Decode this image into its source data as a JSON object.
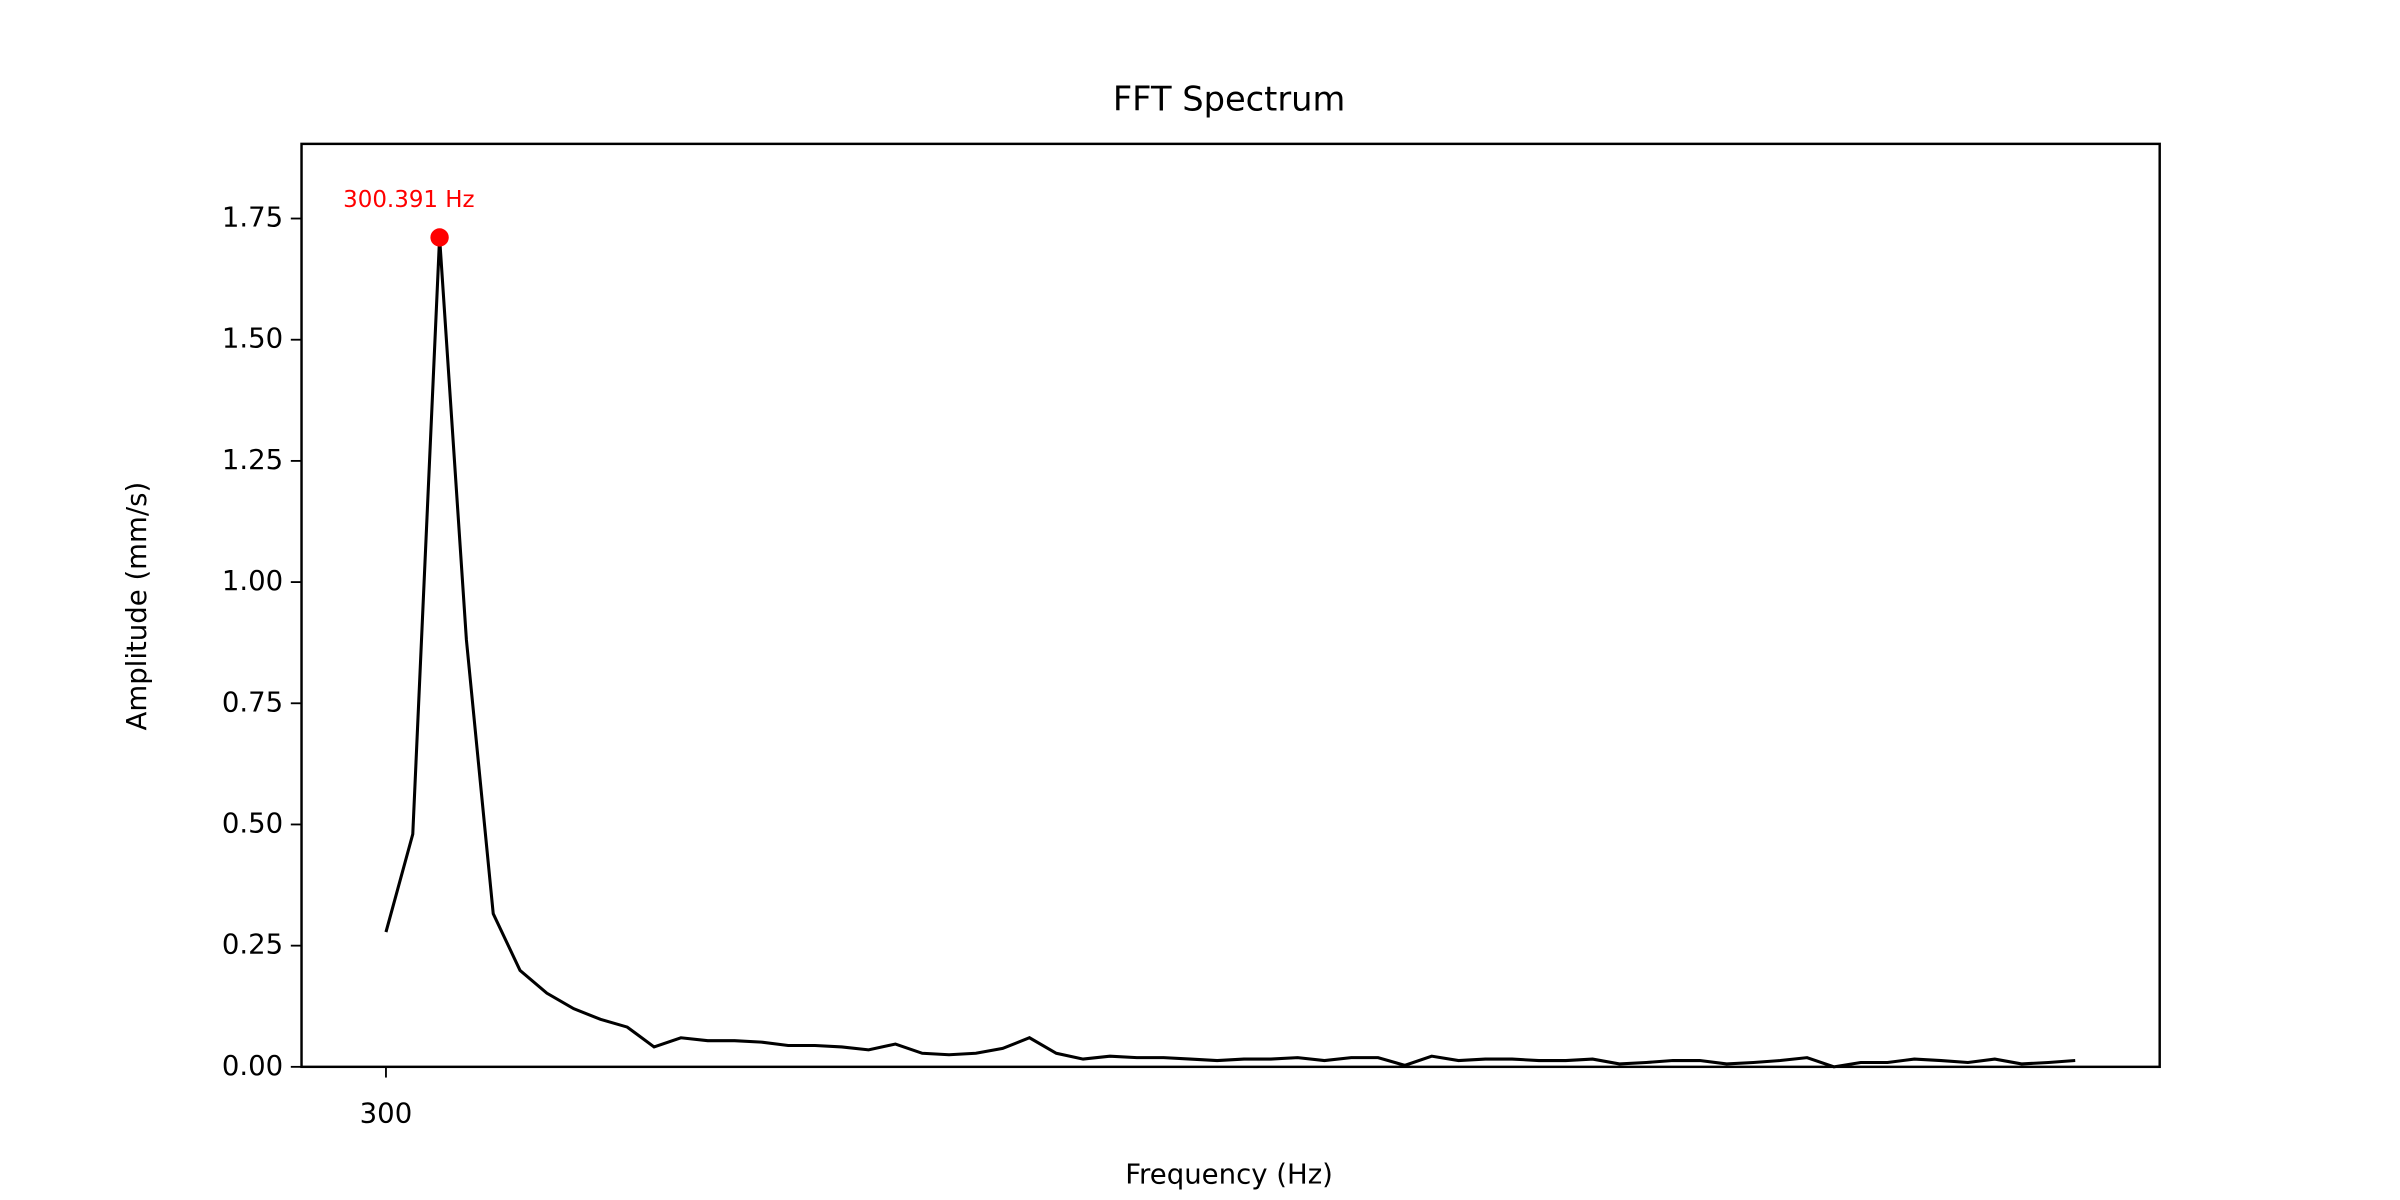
{
  "chart_data": {
    "type": "line",
    "title": "FFT Spectrum",
    "x_label": "Frequency (Hz)",
    "y_label": "Amplitude (mm/s)",
    "x": [
      300,
      300.1953,
      300.3906,
      300.5859,
      300.7813,
      300.9766,
      301.1719,
      301.3672,
      301.5625,
      301.7578,
      301.9531,
      302.1484,
      302.3438,
      302.5391,
      302.7344,
      302.9297,
      303.125,
      303.3203,
      303.5156,
      303.7109,
      303.9063,
      304.1016,
      304.2969,
      304.4922,
      304.6875,
      304.8828,
      305.0781,
      305.2734,
      305.4688,
      305.6641,
      305.8594,
      306.0547,
      306.25,
      306.4453,
      306.6406,
      306.8359,
      307.0313,
      307.2266,
      307.4219,
      307.6172,
      307.8125,
      308.0078,
      308.2031,
      308.3984,
      308.5938,
      308.7891,
      308.9844,
      309.1797,
      309.375,
      309.5703,
      309.7656,
      309.9609,
      310.1563,
      310.3516,
      310.5469,
      310.7422,
      310.9375,
      311.1328,
      311.3281,
      311.5234,
      311.7188,
      311.9141,
      312.1094,
      312.3047
    ],
    "series": [
      {
        "name": "Amplitude",
        "color": "#000000",
        "values": [
          0.278,
          0.48,
          1.711,
          0.881,
          0.316,
          0.199,
          0.152,
          0.12,
          0.098,
          0.082,
          0.041,
          0.06,
          0.054,
          0.054,
          0.051,
          0.044,
          0.044,
          0.041,
          0.035,
          0.047,
          0.028,
          0.025,
          0.028,
          0.038,
          0.06,
          0.028,
          0.016,
          0.022,
          0.019,
          0.019,
          0.016,
          0.013,
          0.016,
          0.016,
          0.019,
          0.013,
          0.019,
          0.019,
          0.003,
          0.022,
          0.013,
          0.016,
          0.016,
          0.013,
          0.013,
          0.016,
          0.006,
          0.009,
          0.013,
          0.013,
          0.006,
          0.009,
          0.013,
          0.019,
          0.0,
          0.009,
          0.009,
          0.016,
          0.013,
          0.009,
          0.016,
          0.006,
          0.009,
          0.013
        ]
      }
    ],
    "annotations": [
      {
        "text": "300.391 Hz",
        "x": 300.3906,
        "y": 1.711,
        "color": "#ff0000"
      }
    ],
    "xlim": [
      299.385,
      312.92
    ],
    "xticks": [
      300
    ],
    "ylim": [
      0,
      1.904
    ],
    "yticks": [
      {
        "value": 0,
        "label": "0.00"
      },
      {
        "value": 0.25,
        "label": "0.25"
      },
      {
        "value": 0.5,
        "label": "0.50"
      },
      {
        "value": 0.75,
        "label": "0.75"
      },
      {
        "value": 1.0,
        "label": "1.00"
      },
      {
        "value": 1.25,
        "label": "1.25"
      },
      {
        "value": 1.5,
        "label": "1.50"
      },
      {
        "value": 1.75,
        "label": "1.75"
      }
    ],
    "grid": false
  }
}
